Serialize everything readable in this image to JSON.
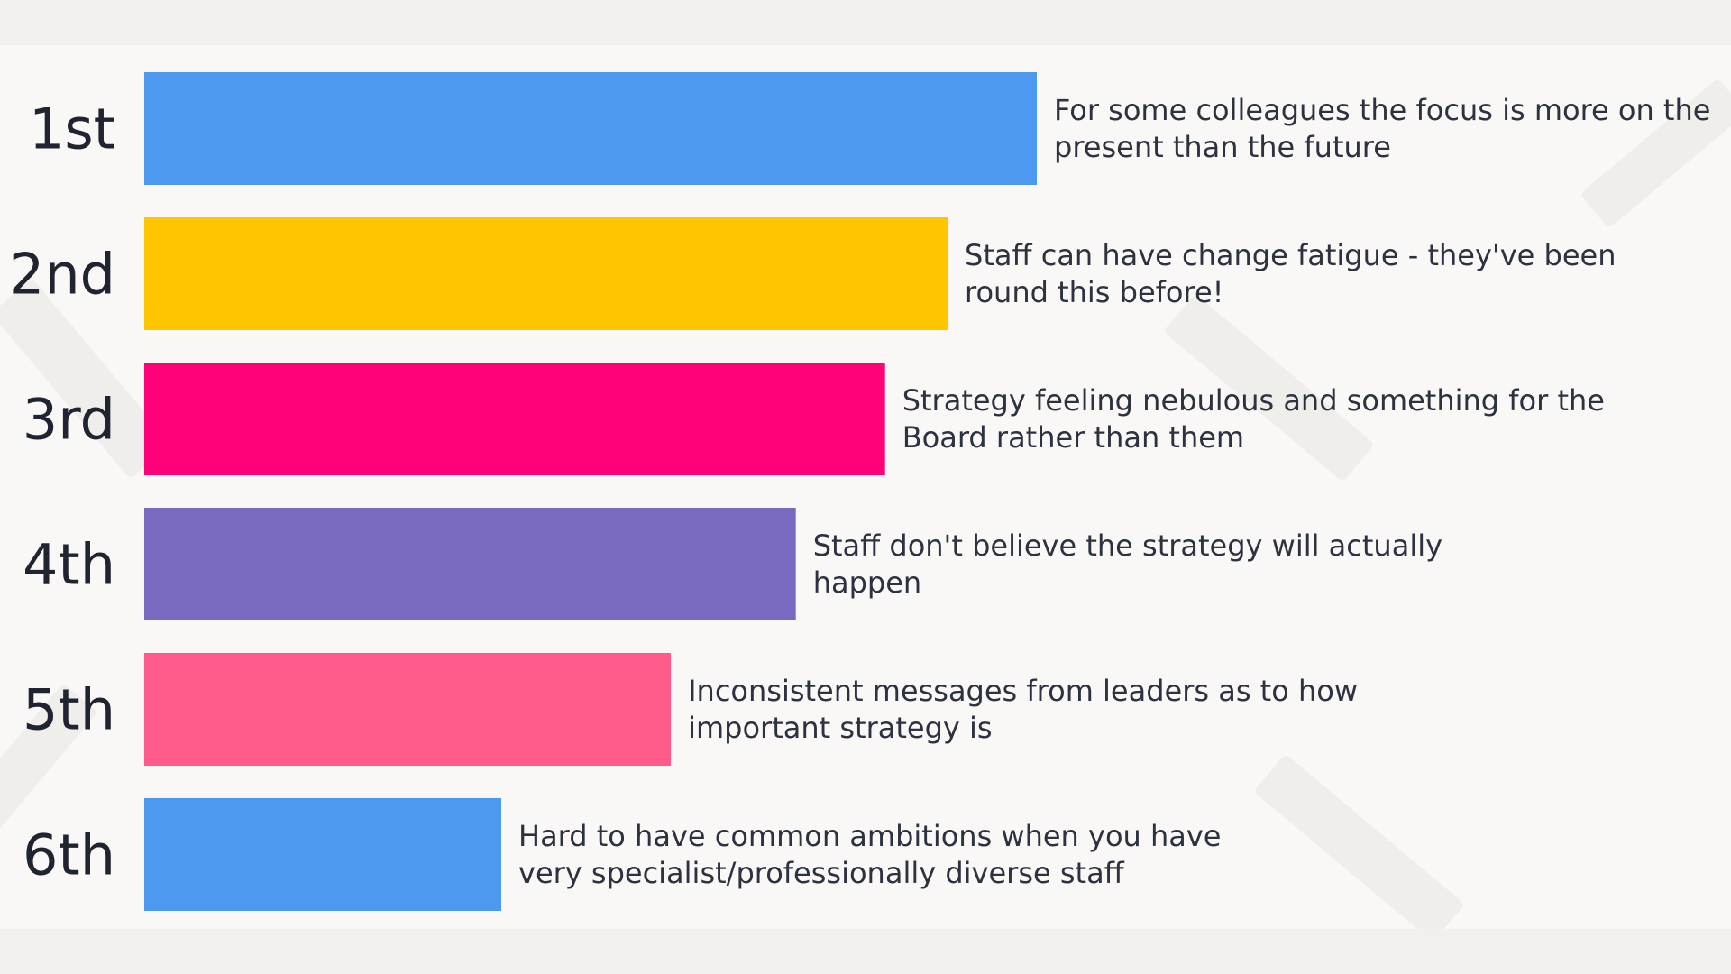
{
  "chart_data": {
    "type": "bar",
    "orientation": "horizontal",
    "title": "",
    "xlabel": "",
    "ylabel": "",
    "grid": false,
    "xlim": [
      0,
      100
    ],
    "categories": [
      "1st",
      "2nd",
      "3rd",
      "4th",
      "5th",
      "6th"
    ],
    "values": [
      100,
      90,
      83,
      73,
      59,
      40
    ],
    "colors": [
      "#4d99ef",
      "#ffc600",
      "#ff0076",
      "#7b68bf",
      "#ff5a8a",
      "#4d99ef"
    ],
    "annotations": [
      [
        "For some colleagues the focus is more on the",
        "present than the future"
      ],
      [
        "Staff can have change fatigue - they've been",
        "round this before!"
      ],
      [
        "Strategy feeling nebulous and something for the",
        "Board rather than them"
      ],
      [
        "Staff don't believe the strategy will actually",
        "happen"
      ],
      [
        "Inconsistent messages from leaders as to how",
        "important strategy is"
      ],
      [
        "Hard to have common ambitions when you have",
        "very specialist/professionally diverse staff"
      ]
    ]
  }
}
